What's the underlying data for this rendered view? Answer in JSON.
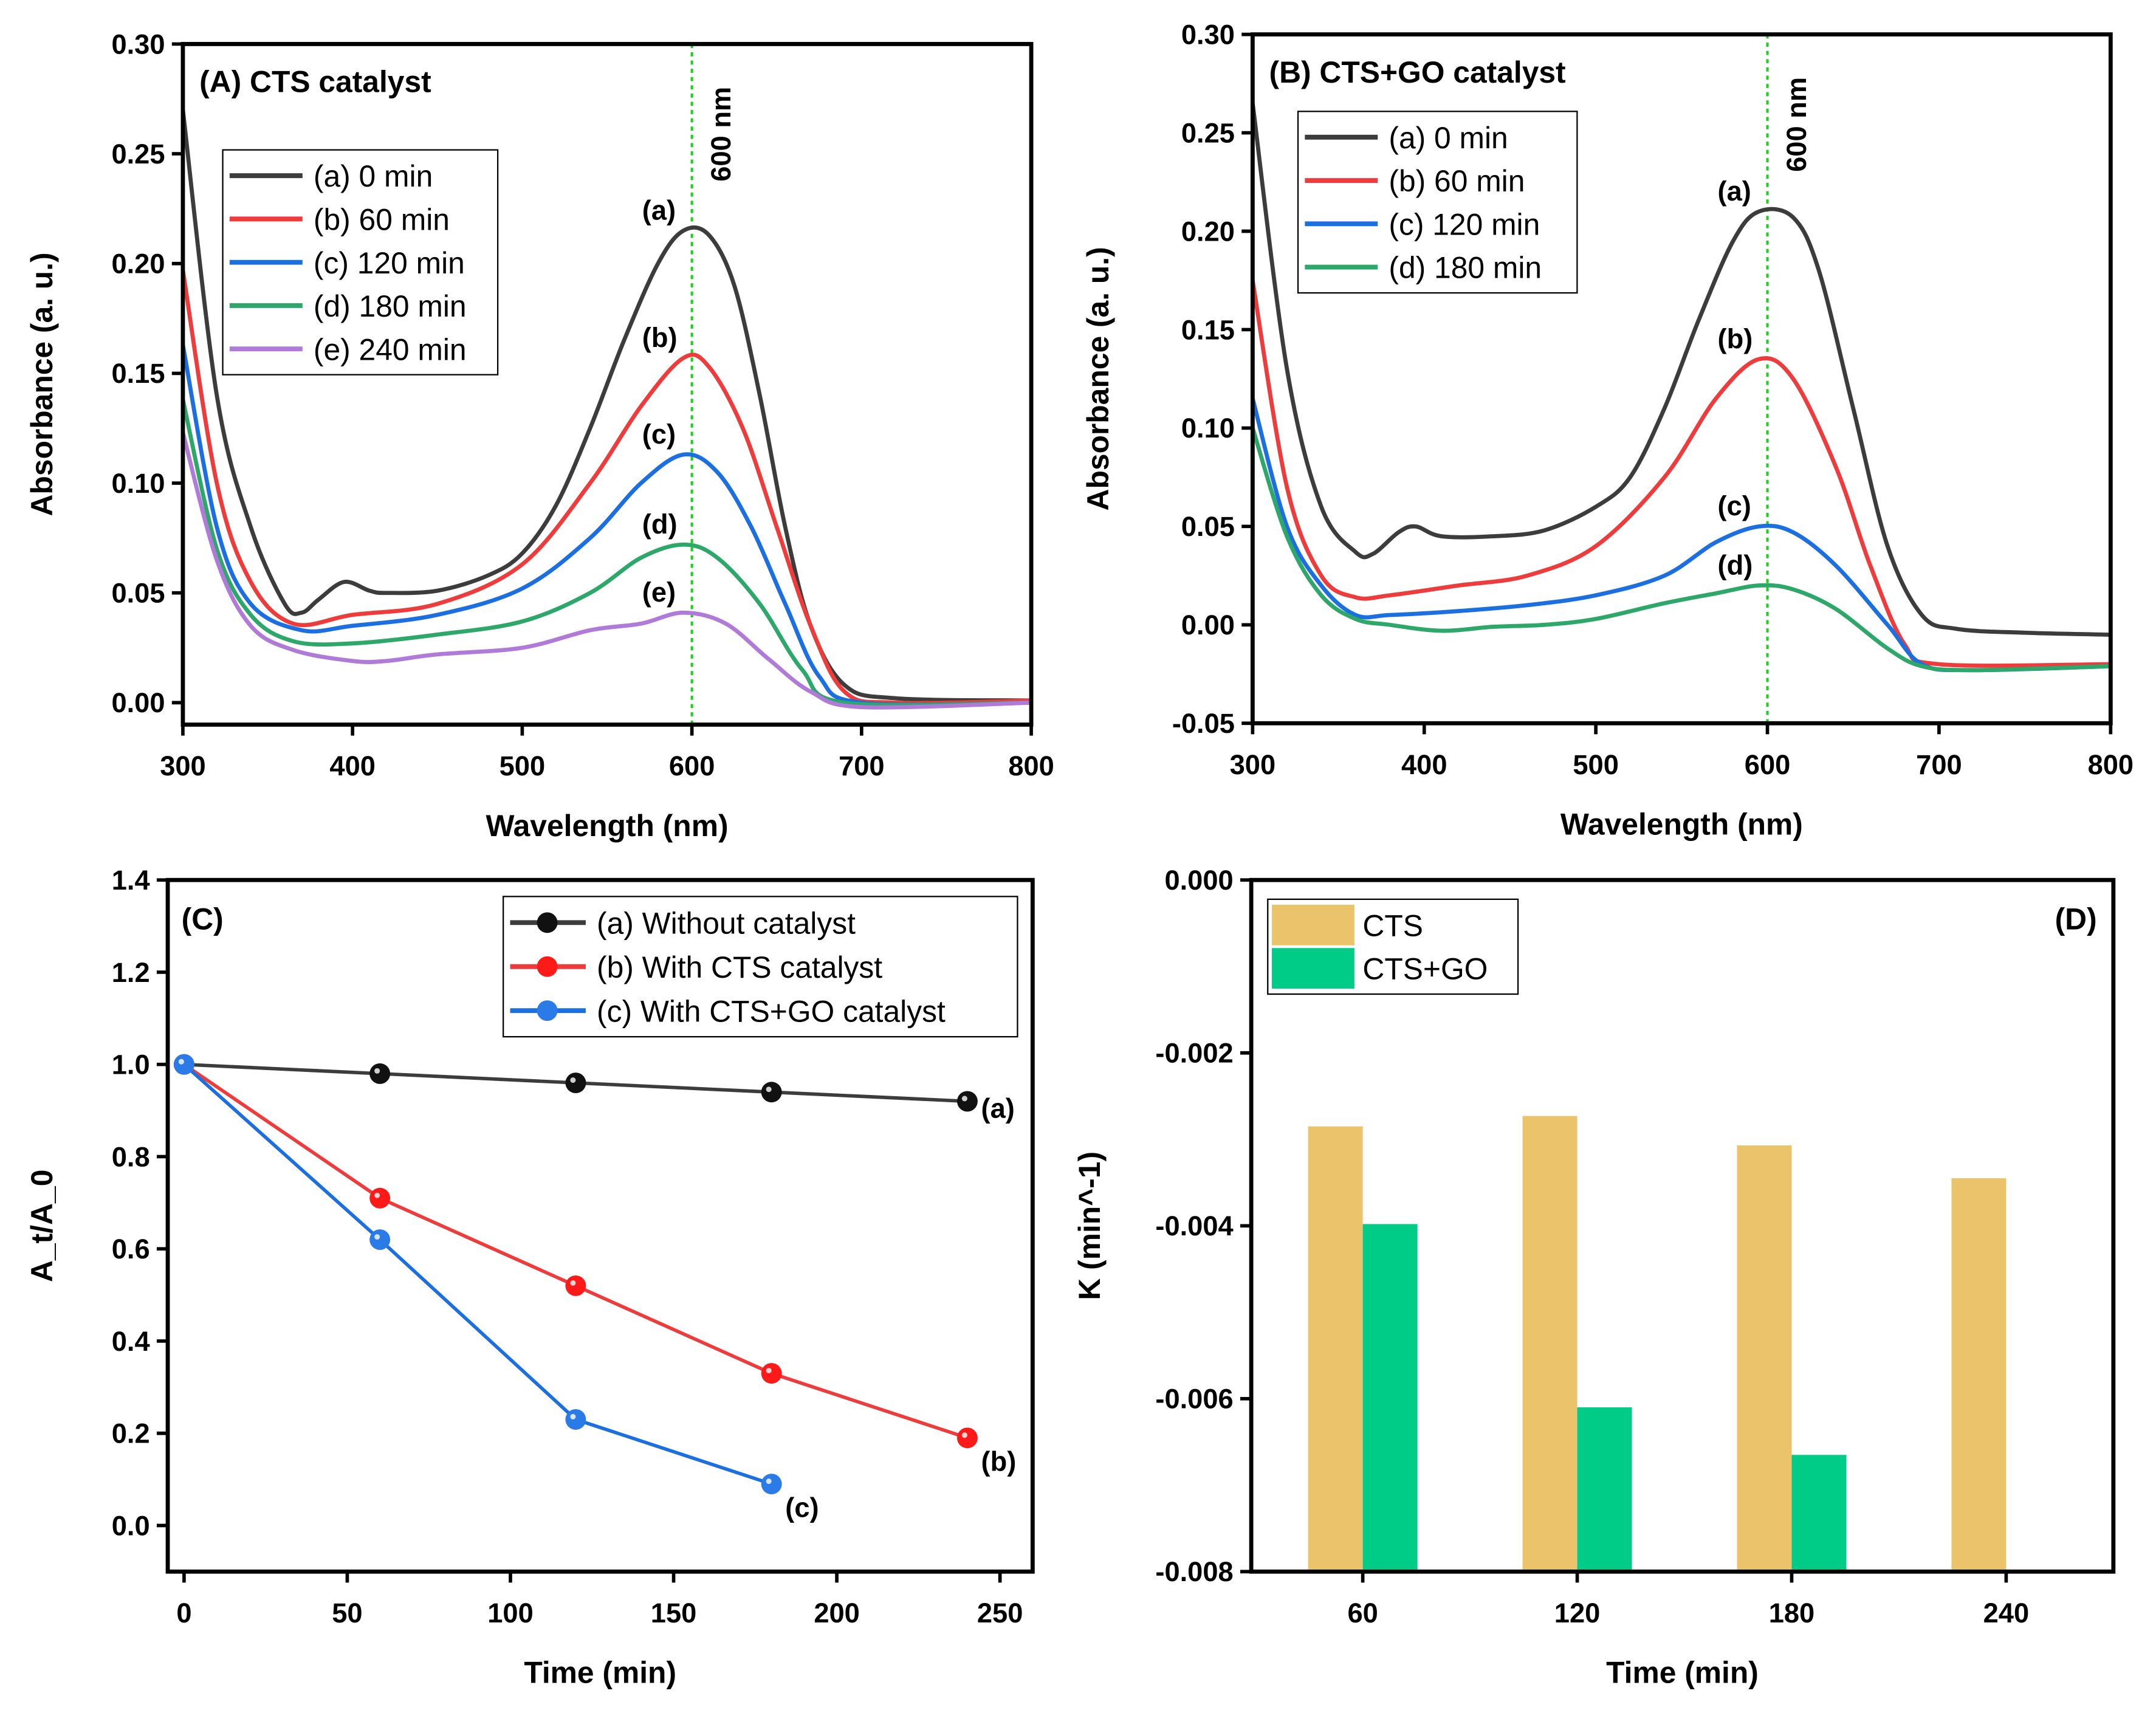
{
  "chart_data": [
    {
      "type": "line",
      "title": "(A) CTS catalyst",
      "xlabel": "Wavelength (nm)",
      "ylabel": "Absorbance (a. u.)",
      "xlim": [
        300,
        800
      ],
      "ylim": [
        -0.01,
        0.3
      ],
      "xticks": [
        "300",
        "400",
        "500",
        "600",
        "700",
        "800"
      ],
      "yticks": [
        "0.00",
        "0.05",
        "0.10",
        "0.15",
        "0.20",
        "0.25",
        "0.30"
      ],
      "marker_line": {
        "x": 600,
        "label": "600 nm",
        "color": "#22cc22"
      },
      "legend": "top-left",
      "series": [
        {
          "name": "(a) 0 min",
          "label": "(a)",
          "color": "#3c3c3c",
          "points": [
            [
              300,
              0.27
            ],
            [
              320,
              0.14
            ],
            [
              340,
              0.08
            ],
            [
              360,
              0.045
            ],
            [
              370,
              0.041
            ],
            [
              380,
              0.047
            ],
            [
              395,
              0.055
            ],
            [
              410,
              0.051
            ],
            [
              420,
              0.05
            ],
            [
              450,
              0.051
            ],
            [
              480,
              0.058
            ],
            [
              500,
              0.068
            ],
            [
              520,
              0.09
            ],
            [
              540,
              0.125
            ],
            [
              560,
              0.165
            ],
            [
              580,
              0.2
            ],
            [
              595,
              0.215
            ],
            [
              610,
              0.213
            ],
            [
              625,
              0.19
            ],
            [
              640,
              0.14
            ],
            [
              655,
              0.08
            ],
            [
              670,
              0.035
            ],
            [
              690,
              0.008
            ],
            [
              720,
              0.002
            ],
            [
              800,
              0.001
            ]
          ]
        },
        {
          "name": "(b) 60 min",
          "label": "(b)",
          "color": "#ee3b3b",
          "points": [
            [
              300,
              0.197
            ],
            [
              320,
              0.1
            ],
            [
              340,
              0.055
            ],
            [
              365,
              0.036
            ],
            [
              400,
              0.04
            ],
            [
              450,
              0.045
            ],
            [
              500,
              0.063
            ],
            [
              540,
              0.1
            ],
            [
              570,
              0.135
            ],
            [
              595,
              0.157
            ],
            [
              610,
              0.153
            ],
            [
              630,
              0.125
            ],
            [
              650,
              0.08
            ],
            [
              670,
              0.035
            ],
            [
              690,
              0.005
            ],
            [
              720,
              0.0
            ],
            [
              800,
              0.001
            ]
          ]
        },
        {
          "name": "(c) 120 min",
          "label": "(c)",
          "color": "#1c6fe0",
          "points": [
            [
              300,
              0.163
            ],
            [
              320,
              0.08
            ],
            [
              340,
              0.045
            ],
            [
              370,
              0.033
            ],
            [
              400,
              0.035
            ],
            [
              450,
              0.04
            ],
            [
              500,
              0.052
            ],
            [
              540,
              0.075
            ],
            [
              570,
              0.1
            ],
            [
              595,
              0.113
            ],
            [
              615,
              0.105
            ],
            [
              635,
              0.08
            ],
            [
              655,
              0.045
            ],
            [
              675,
              0.012
            ],
            [
              700,
              0.0
            ],
            [
              800,
              0.0
            ]
          ]
        },
        {
          "name": "(d) 180 min",
          "label": "(d)",
          "color": "#2ea86a",
          "points": [
            [
              300,
              0.138
            ],
            [
              320,
              0.07
            ],
            [
              340,
              0.04
            ],
            [
              365,
              0.028
            ],
            [
              400,
              0.027
            ],
            [
              450,
              0.031
            ],
            [
              500,
              0.037
            ],
            [
              540,
              0.05
            ],
            [
              570,
              0.066
            ],
            [
              595,
              0.072
            ],
            [
              615,
              0.066
            ],
            [
              640,
              0.045
            ],
            [
              665,
              0.015
            ],
            [
              690,
              0.0
            ],
            [
              800,
              0.0
            ]
          ]
        },
        {
          "name": "(e) 240 min",
          "label": "(e)",
          "color": "#b07ad8",
          "points": [
            [
              300,
              0.123
            ],
            [
              320,
              0.065
            ],
            [
              340,
              0.035
            ],
            [
              365,
              0.024
            ],
            [
              400,
              0.019
            ],
            [
              420,
              0.019
            ],
            [
              450,
              0.022
            ],
            [
              500,
              0.025
            ],
            [
              540,
              0.033
            ],
            [
              570,
              0.036
            ],
            [
              595,
              0.041
            ],
            [
              620,
              0.036
            ],
            [
              645,
              0.02
            ],
            [
              670,
              0.005
            ],
            [
              700,
              -0.002
            ],
            [
              800,
              0.0
            ]
          ]
        }
      ]
    },
    {
      "type": "line",
      "title": "(B) CTS+GO catalyst",
      "xlabel": "Wavelength (nm)",
      "ylabel": "Absorbance (a. u.)",
      "xlim": [
        300,
        800
      ],
      "ylim": [
        -0.05,
        0.3
      ],
      "xticks": [
        "300",
        "400",
        "500",
        "600",
        "700",
        "800"
      ],
      "yticks": [
        "-0.05",
        "0.00",
        "0.05",
        "0.10",
        "0.15",
        "0.20",
        "0.25",
        "0.30"
      ],
      "marker_line": {
        "x": 600,
        "label": "600 nm",
        "color": "#22cc22"
      },
      "legend": "top-left",
      "series": [
        {
          "name": "(a) 0 min",
          "label": "(a)",
          "color": "#3c3c3c",
          "points": [
            [
              300,
              0.265
            ],
            [
              320,
              0.13
            ],
            [
              340,
              0.06
            ],
            [
              360,
              0.037
            ],
            [
              370,
              0.036
            ],
            [
              385,
              0.047
            ],
            [
              395,
              0.05
            ],
            [
              410,
              0.045
            ],
            [
              440,
              0.045
            ],
            [
              470,
              0.048
            ],
            [
              500,
              0.06
            ],
            [
              520,
              0.075
            ],
            [
              540,
              0.11
            ],
            [
              560,
              0.155
            ],
            [
              580,
              0.195
            ],
            [
              595,
              0.21
            ],
            [
              615,
              0.207
            ],
            [
              630,
              0.18
            ],
            [
              650,
              0.11
            ],
            [
              670,
              0.04
            ],
            [
              690,
              0.005
            ],
            [
              710,
              -0.002
            ],
            [
              750,
              -0.004
            ],
            [
              800,
              -0.005
            ]
          ]
        },
        {
          "name": "(b) 60 min",
          "label": "(b)",
          "color": "#ee3b3b",
          "points": [
            [
              300,
              0.175
            ],
            [
              320,
              0.07
            ],
            [
              340,
              0.025
            ],
            [
              360,
              0.014
            ],
            [
              380,
              0.015
            ],
            [
              420,
              0.02
            ],
            [
              460,
              0.025
            ],
            [
              500,
              0.04
            ],
            [
              540,
              0.075
            ],
            [
              570,
              0.115
            ],
            [
              595,
              0.135
            ],
            [
              615,
              0.125
            ],
            [
              640,
              0.08
            ],
            [
              660,
              0.03
            ],
            [
              680,
              -0.01
            ],
            [
              700,
              -0.02
            ],
            [
              800,
              -0.02
            ]
          ]
        },
        {
          "name": "(c) 120 min",
          "label": "(c)",
          "color": "#1c6fe0",
          "points": [
            [
              300,
              0.115
            ],
            [
              320,
              0.05
            ],
            [
              340,
              0.02
            ],
            [
              360,
              0.005
            ],
            [
              380,
              0.005
            ],
            [
              420,
              0.007
            ],
            [
              460,
              0.01
            ],
            [
              500,
              0.015
            ],
            [
              540,
              0.025
            ],
            [
              570,
              0.042
            ],
            [
              595,
              0.05
            ],
            [
              615,
              0.047
            ],
            [
              640,
              0.03
            ],
            [
              670,
              0.0
            ],
            [
              690,
              -0.02
            ],
            [
              720,
              -0.023
            ],
            [
              800,
              -0.021
            ]
          ]
        },
        {
          "name": "(d) 180 min",
          "label": "(d)",
          "color": "#2ea86a",
          "points": [
            [
              300,
              0.1
            ],
            [
              320,
              0.045
            ],
            [
              340,
              0.015
            ],
            [
              360,
              0.003
            ],
            [
              380,
              0.0
            ],
            [
              410,
              -0.003
            ],
            [
              440,
              -0.001
            ],
            [
              470,
              0.0
            ],
            [
              500,
              0.003
            ],
            [
              540,
              0.011
            ],
            [
              570,
              0.016
            ],
            [
              595,
              0.02
            ],
            [
              615,
              0.018
            ],
            [
              640,
              0.008
            ],
            [
              670,
              -0.012
            ],
            [
              690,
              -0.021
            ],
            [
              720,
              -0.023
            ],
            [
              800,
              -0.021
            ]
          ]
        }
      ]
    },
    {
      "type": "line",
      "title": "(C)",
      "xlabel": "Time (min)",
      "ylabel": "A_t/A_0",
      "xlim": [
        -5,
        260
      ],
      "ylim": [
        -0.1,
        1.4
      ],
      "xticks": [
        "0",
        "50",
        "100",
        "150",
        "200",
        "250"
      ],
      "yticks": [
        "0.0",
        "0.2",
        "0.4",
        "0.6",
        "0.8",
        "1.0",
        "1.2",
        "1.4"
      ],
      "legend": "top-right",
      "series": [
        {
          "name": "(a) Without catalyst",
          "label": "(a)",
          "color": "#3c3c3c",
          "marker": "#111111",
          "points": [
            [
              0,
              1.0
            ],
            [
              60,
              0.98
            ],
            [
              120,
              0.96
            ],
            [
              180,
              0.94
            ],
            [
              240,
              0.92
            ]
          ]
        },
        {
          "name": "(b) With CTS catalyst",
          "label": "(b)",
          "color": "#ee3b3b",
          "marker": "#ff1a1a",
          "points": [
            [
              0,
              1.0
            ],
            [
              60,
              0.71
            ],
            [
              120,
              0.52
            ],
            [
              180,
              0.33
            ],
            [
              240,
              0.19
            ]
          ]
        },
        {
          "name": "(c) With CTS+GO catalyst",
          "label": "(c)",
          "color": "#1c6fe0",
          "marker": "#2a7ae8",
          "points": [
            [
              0,
              1.0
            ],
            [
              60,
              0.62
            ],
            [
              120,
              0.23
            ],
            [
              180,
              0.09
            ]
          ]
        }
      ]
    },
    {
      "type": "bar",
      "title": "(D)",
      "xlabel": "Time (min)",
      "ylabel": "K (min^-1)",
      "categories": [
        "60",
        "120",
        "180",
        "240"
      ],
      "ylim": [
        0,
        -0.008
      ],
      "yticks": [
        "0.000",
        "-0.002",
        "-0.004",
        "-0.006",
        "-0.008"
      ],
      "legend": "top-left",
      "series": [
        {
          "name": "CTS",
          "color": "#ebc36b",
          "values": [
            -0.00285,
            -0.00273,
            -0.00307,
            -0.00345
          ]
        },
        {
          "name": "CTS+GO",
          "color": "#00cc88",
          "values": [
            -0.00398,
            -0.0061,
            -0.00665,
            null
          ]
        }
      ]
    }
  ]
}
